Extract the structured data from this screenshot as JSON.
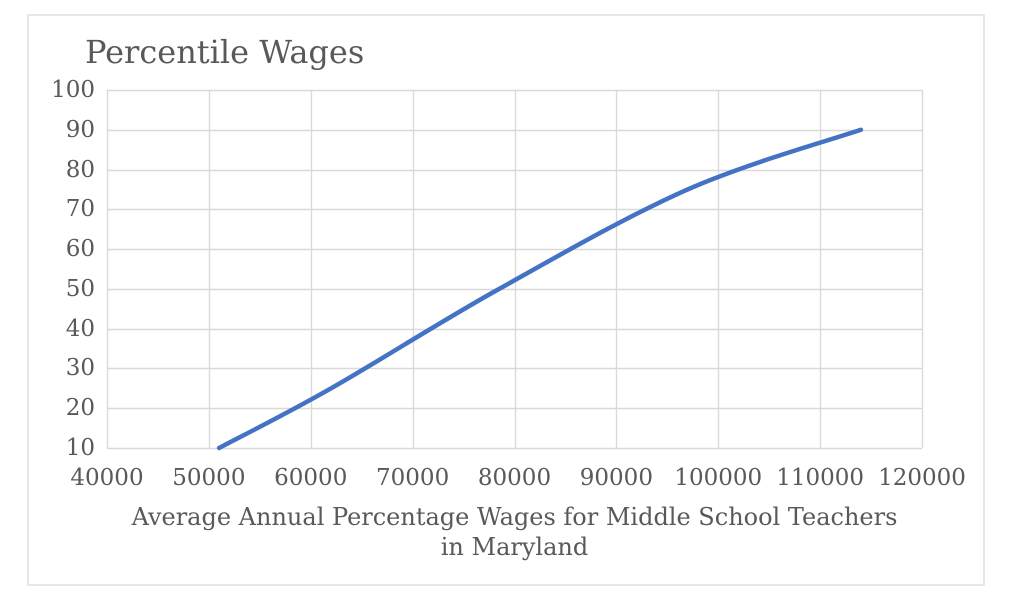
{
  "chart_data": {
    "type": "line",
    "title": "Percentile Wages",
    "xlabel": "Average Annual Percentage Wages for Middle School Teachers in Maryland",
    "xlabel_lines": [
      "Average Annual Percentage Wages for Middle School Teachers",
      "in Maryland"
    ],
    "ylabel": "",
    "series": [
      {
        "name": "Percentile Wages",
        "x": [
          51000,
          62000,
          78500,
          97000,
          114000
        ],
        "y": [
          10,
          25,
          50,
          75,
          90
        ],
        "smoothed": true,
        "markers": false
      }
    ],
    "xlim": [
      40000,
      120000
    ],
    "ylim": [
      10,
      100
    ],
    "x_ticks": [
      40000,
      50000,
      60000,
      70000,
      80000,
      90000,
      100000,
      110000,
      120000
    ],
    "y_ticks": [
      10,
      20,
      30,
      40,
      50,
      60,
      70,
      80,
      90,
      100
    ],
    "grid": true,
    "legend": false,
    "colors": {
      "line": "#4472C4",
      "grid": "#D9D9D9",
      "text": "#595959",
      "frame_border": "#E7E7E7",
      "background": "#FFFFFF"
    }
  }
}
